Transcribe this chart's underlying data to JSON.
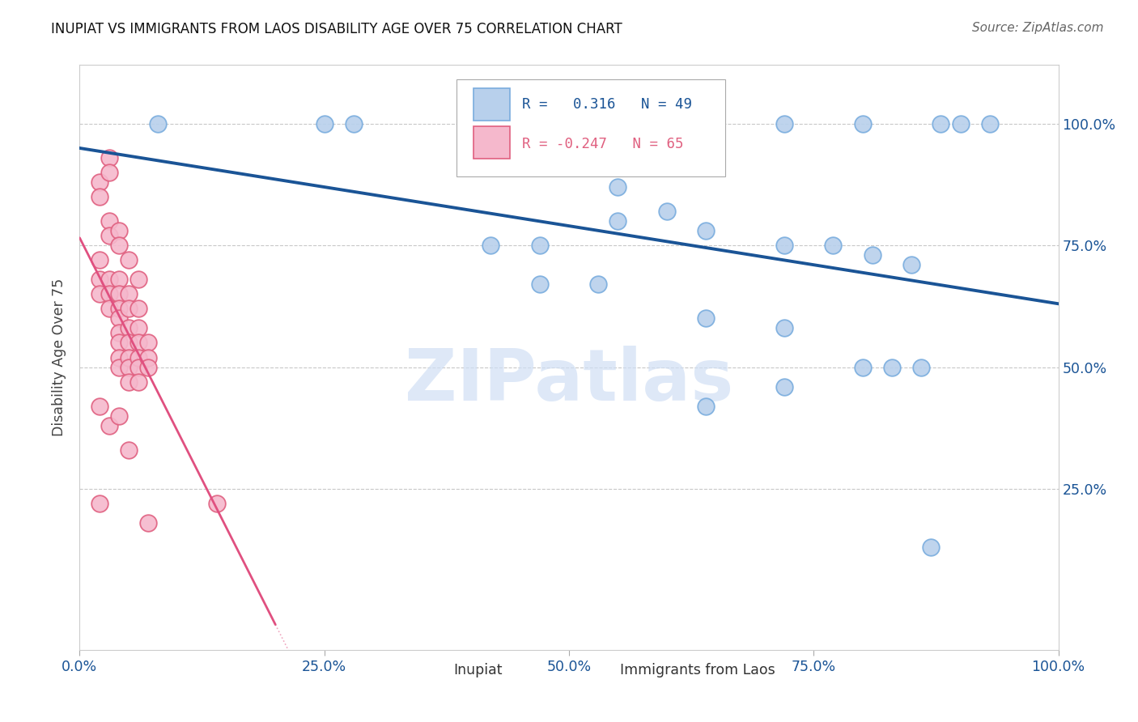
{
  "title": "INUPIAT VS IMMIGRANTS FROM LAOS DISABILITY AGE OVER 75 CORRELATION CHART",
  "source": "Source: ZipAtlas.com",
  "ylabel": "Disability Age Over 75",
  "inupiat_label": "Inupiat",
  "laos_label": "Immigrants from Laos",
  "inupiat_points": [
    [
      0.08,
      1.0
    ],
    [
      0.25,
      1.0
    ],
    [
      0.28,
      1.0
    ],
    [
      0.55,
      0.87
    ],
    [
      0.6,
      0.82
    ],
    [
      0.72,
      1.0
    ],
    [
      0.8,
      1.0
    ],
    [
      0.88,
      1.0
    ],
    [
      0.9,
      1.0
    ],
    [
      0.93,
      1.0
    ],
    [
      0.55,
      0.8
    ],
    [
      0.64,
      0.78
    ],
    [
      0.42,
      0.75
    ],
    [
      0.47,
      0.75
    ],
    [
      0.72,
      0.75
    ],
    [
      0.77,
      0.75
    ],
    [
      0.81,
      0.73
    ],
    [
      0.85,
      0.71
    ],
    [
      0.47,
      0.67
    ],
    [
      0.53,
      0.67
    ],
    [
      0.64,
      0.6
    ],
    [
      0.72,
      0.58
    ],
    [
      0.8,
      0.5
    ],
    [
      0.83,
      0.5
    ],
    [
      0.86,
      0.5
    ],
    [
      0.72,
      0.46
    ],
    [
      0.64,
      0.42
    ],
    [
      0.87,
      0.13
    ]
  ],
  "laos_points": [
    [
      0.02,
      0.72
    ],
    [
      0.02,
      0.68
    ],
    [
      0.02,
      0.65
    ],
    [
      0.03,
      0.68
    ],
    [
      0.03,
      0.65
    ],
    [
      0.03,
      0.62
    ],
    [
      0.04,
      0.68
    ],
    [
      0.04,
      0.65
    ],
    [
      0.04,
      0.62
    ],
    [
      0.04,
      0.6
    ],
    [
      0.04,
      0.57
    ],
    [
      0.04,
      0.55
    ],
    [
      0.04,
      0.52
    ],
    [
      0.04,
      0.5
    ],
    [
      0.05,
      0.65
    ],
    [
      0.05,
      0.62
    ],
    [
      0.05,
      0.58
    ],
    [
      0.05,
      0.55
    ],
    [
      0.05,
      0.52
    ],
    [
      0.05,
      0.5
    ],
    [
      0.05,
      0.47
    ],
    [
      0.06,
      0.62
    ],
    [
      0.06,
      0.58
    ],
    [
      0.06,
      0.55
    ],
    [
      0.06,
      0.52
    ],
    [
      0.06,
      0.5
    ],
    [
      0.06,
      0.47
    ],
    [
      0.07,
      0.55
    ],
    [
      0.07,
      0.52
    ],
    [
      0.07,
      0.5
    ],
    [
      0.03,
      0.8
    ],
    [
      0.03,
      0.77
    ],
    [
      0.04,
      0.78
    ],
    [
      0.04,
      0.75
    ],
    [
      0.05,
      0.72
    ],
    [
      0.06,
      0.68
    ],
    [
      0.02,
      0.88
    ],
    [
      0.02,
      0.85
    ],
    [
      0.03,
      0.93
    ],
    [
      0.03,
      0.9
    ],
    [
      0.02,
      0.42
    ],
    [
      0.03,
      0.38
    ],
    [
      0.04,
      0.4
    ],
    [
      0.05,
      0.33
    ],
    [
      0.02,
      0.22
    ],
    [
      0.07,
      0.18
    ],
    [
      0.14,
      0.22
    ]
  ],
  "blue_line_color": "#1a5496",
  "pink_line_color": "#e05080",
  "blue_scatter_face": "#b8d0ec",
  "blue_scatter_edge": "#7aadde",
  "pink_scatter_face": "#f5b8cc",
  "pink_scatter_edge": "#e06080",
  "grid_color": "#c8c8c8",
  "watermark_color": "#d0dff5",
  "title_color": "#111111",
  "source_color": "#666666",
  "tick_color": "#1a5496",
  "ylabel_color": "#444444",
  "legend_box_color": "#dddddd",
  "legend_text_blue": "#1a5496",
  "legend_text_pink": "#e06080"
}
